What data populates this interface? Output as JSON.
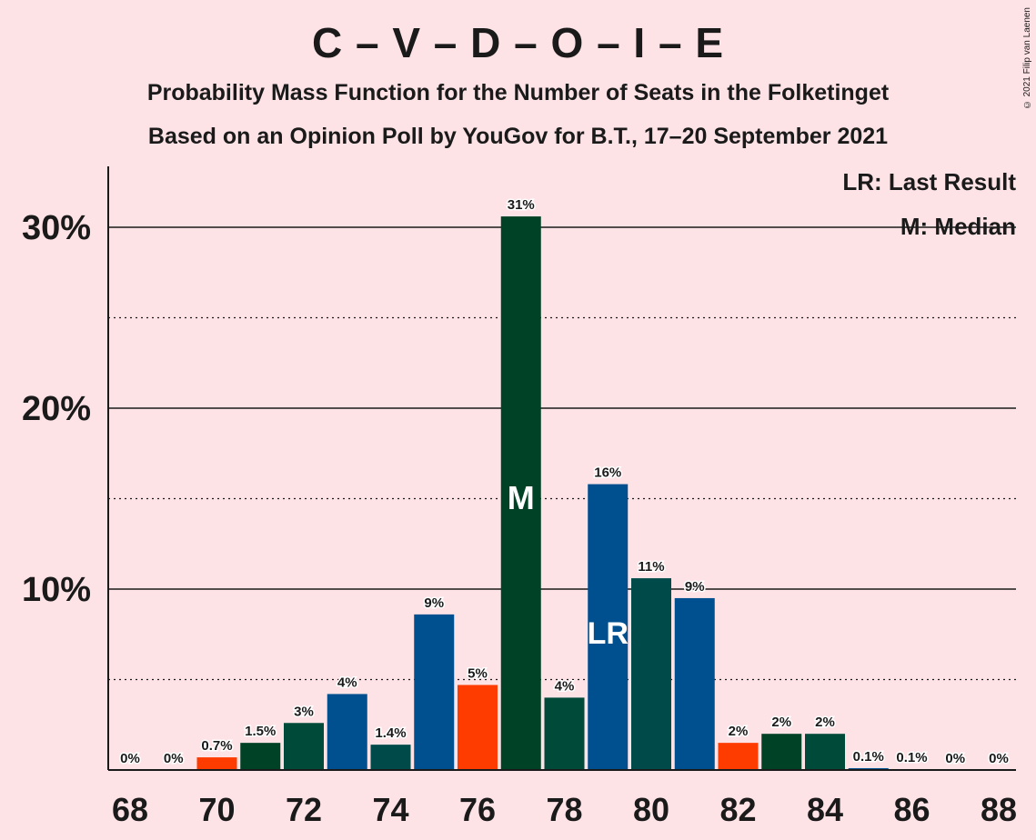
{
  "header": {
    "title": "C – V – D – O – I – E",
    "subtitle": "Probability Mass Function for the Number of Seats in the Folketinget",
    "subtitle2": "Based on an Opinion Poll by YouGov for B.T., 17–20 September 2021",
    "credit": "© 2021 Filip van Laenen"
  },
  "legend": {
    "last_result": "LR: Last Result",
    "median": "M: Median"
  },
  "colors": {
    "background": "#fde2e6",
    "bar_palette": [
      "#ff3c00",
      "#004225",
      "#00468b",
      "#004a4a",
      "#00508f"
    ],
    "text": "#1a1a1a"
  },
  "chart_data": {
    "type": "bar",
    "title": "C – V – D – O – I – E",
    "xlabel": "",
    "ylabel": "",
    "xlim": [
      68,
      88
    ],
    "ylim": [
      0,
      33
    ],
    "y_ticks": [
      10,
      20,
      30
    ],
    "y_tick_labels": [
      "10%",
      "20%",
      "30%"
    ],
    "x_ticks": [
      68,
      70,
      72,
      74,
      76,
      78,
      80,
      82,
      84,
      86,
      88
    ],
    "x_tick_labels": [
      "68",
      "70",
      "72",
      "74",
      "76",
      "78",
      "80",
      "82",
      "84",
      "86",
      "88"
    ],
    "grid": "horizontal dotted every 5%, solid every 10%",
    "legend_position": "top-right",
    "median_seat": 77,
    "median_marker": "M",
    "last_result_seat": 79,
    "last_result_marker": "LR",
    "bars": [
      {
        "seat": 68,
        "value": 0,
        "label": "0%",
        "color": "#ff3c00"
      },
      {
        "seat": 69,
        "value": 0,
        "label": "0%",
        "color": "#004225"
      },
      {
        "seat": 70,
        "value": 0.7,
        "label": "0.7%",
        "color": "#ff3c00"
      },
      {
        "seat": 71,
        "value": 1.5,
        "label": "1.5%",
        "color": "#004225"
      },
      {
        "seat": 72,
        "value": 2.6,
        "label": "3%",
        "color": "#004a3a"
      },
      {
        "seat": 73,
        "value": 4.2,
        "label": "4%",
        "color": "#00508f"
      },
      {
        "seat": 74,
        "value": 1.4,
        "label": "1.4%",
        "color": "#004a4a"
      },
      {
        "seat": 75,
        "value": 8.6,
        "label": "9%",
        "color": "#00508f"
      },
      {
        "seat": 76,
        "value": 4.7,
        "label": "5%",
        "color": "#ff3c00"
      },
      {
        "seat": 77,
        "value": 30.6,
        "label": "31%",
        "color": "#004225"
      },
      {
        "seat": 78,
        "value": 4.0,
        "label": "4%",
        "color": "#004a3a"
      },
      {
        "seat": 79,
        "value": 15.8,
        "label": "16%",
        "color": "#00508f"
      },
      {
        "seat": 80,
        "value": 10.6,
        "label": "11%",
        "color": "#004a4a"
      },
      {
        "seat": 81,
        "value": 9.5,
        "label": "9%",
        "color": "#00508f"
      },
      {
        "seat": 82,
        "value": 1.5,
        "label": "2%",
        "color": "#ff3c00"
      },
      {
        "seat": 83,
        "value": 2.0,
        "label": "2%",
        "color": "#004225"
      },
      {
        "seat": 84,
        "value": 2.0,
        "label": "2%",
        "color": "#004a3a"
      },
      {
        "seat": 85,
        "value": 0.1,
        "label": "0.1%",
        "color": "#00508f"
      },
      {
        "seat": 86,
        "value": 0.05,
        "label": "0.1%",
        "color": "#004a4a"
      },
      {
        "seat": 87,
        "value": 0,
        "label": "0%",
        "color": "#00508f"
      },
      {
        "seat": 88,
        "value": 0,
        "label": "0%",
        "color": "#ff3c00"
      }
    ]
  }
}
